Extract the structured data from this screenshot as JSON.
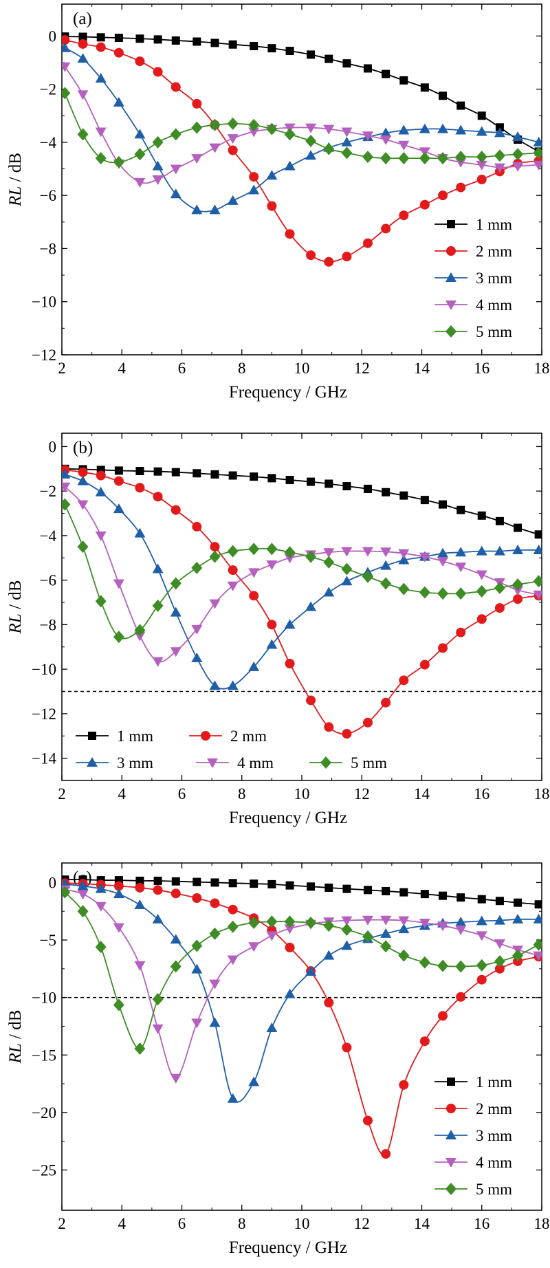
{
  "styles": {
    "colors": [
      "#000000",
      "#e31a1c",
      "#1f5fa8",
      "#b55fbf",
      "#3d8c24"
    ],
    "markers": [
      "square",
      "circle",
      "triangle-up",
      "triangle-down",
      "diamond"
    ]
  },
  "chart_data": [
    {
      "type": "line",
      "panel_label": "(a)",
      "xlabel": "Frequency / GHz",
      "ylabel_italic": "RL",
      "ylabel_unit": " / dB",
      "xlim": [
        2,
        18
      ],
      "ylim": [
        -12,
        1.2
      ],
      "xticks": [
        "2",
        "4",
        "6",
        "8",
        "10",
        "12",
        "14",
        "16",
        "18"
      ],
      "yticks": [
        "0",
        "−2",
        "−4",
        "−6",
        "−8",
        "−10",
        "−12"
      ],
      "ytick_values": [
        0,
        -2,
        -4,
        -6,
        -8,
        -10,
        -12
      ],
      "ref_line": null,
      "legend": {
        "placement": "right-lower",
        "layout": "column"
      },
      "x": [
        2.1,
        2.7,
        3.3,
        3.9,
        4.6,
        5.2,
        5.8,
        6.5,
        7.1,
        7.7,
        8.4,
        9.0,
        9.6,
        10.3,
        10.9,
        11.5,
        12.2,
        12.8,
        13.4,
        14.1,
        14.7,
        15.3,
        16.0,
        16.6,
        17.2,
        17.9
      ],
      "series": [
        {
          "name": "1 mm",
          "values": [
            -0.02,
            -0.03,
            -0.05,
            -0.07,
            -0.1,
            -0.13,
            -0.17,
            -0.21,
            -0.26,
            -0.32,
            -0.38,
            -0.46,
            -0.56,
            -0.7,
            -0.86,
            -1.03,
            -1.22,
            -1.43,
            -1.67,
            -1.94,
            -2.25,
            -2.62,
            -3.0,
            -3.44,
            -3.9,
            -4.35
          ]
        },
        {
          "name": "2 mm",
          "values": [
            -0.15,
            -0.3,
            -0.42,
            -0.63,
            -0.95,
            -1.35,
            -1.92,
            -2.55,
            -3.35,
            -4.3,
            -5.3,
            -6.4,
            -7.45,
            -8.25,
            -8.5,
            -8.3,
            -7.8,
            -7.25,
            -6.75,
            -6.35,
            -6.0,
            -5.7,
            -5.4,
            -5.1,
            -4.8,
            -4.7
          ]
        },
        {
          "name": "3 mm",
          "values": [
            -0.45,
            -0.85,
            -1.6,
            -2.5,
            -3.7,
            -4.9,
            -5.95,
            -6.55,
            -6.55,
            -6.2,
            -5.8,
            -5.25,
            -4.9,
            -4.5,
            -4.2,
            -4.0,
            -3.8,
            -3.65,
            -3.55,
            -3.5,
            -3.5,
            -3.55,
            -3.6,
            -3.65,
            -3.8,
            -4.0
          ]
        },
        {
          "name": "4 mm",
          "values": [
            -1.15,
            -2.2,
            -3.6,
            -4.8,
            -5.5,
            -5.4,
            -5.0,
            -4.6,
            -4.2,
            -3.85,
            -3.6,
            -3.5,
            -3.45,
            -3.45,
            -3.5,
            -3.6,
            -3.75,
            -3.9,
            -4.1,
            -4.35,
            -4.6,
            -4.75,
            -4.85,
            -4.95,
            -4.9,
            -4.85
          ]
        },
        {
          "name": "5 mm",
          "values": [
            -2.15,
            -3.7,
            -4.6,
            -4.75,
            -4.45,
            -4.0,
            -3.7,
            -3.45,
            -3.35,
            -3.3,
            -3.35,
            -3.5,
            -3.7,
            -3.95,
            -4.25,
            -4.4,
            -4.55,
            -4.6,
            -4.6,
            -4.6,
            -4.6,
            -4.55,
            -4.55,
            -4.5,
            -4.45,
            -4.4
          ]
        }
      ]
    },
    {
      "type": "line",
      "panel_label": "(b)",
      "xlabel": "Frequency / GHz",
      "ylabel_italic": "RL",
      "ylabel_unit": " / dB",
      "xlim": [
        2,
        18
      ],
      "ylim": [
        -15,
        0.6
      ],
      "xticks": [
        "2",
        "4",
        "6",
        "8",
        "10",
        "12",
        "14",
        "16",
        "18"
      ],
      "yticks": [
        "0",
        "−2",
        "−4",
        "−6",
        "−8",
        "−10",
        "−12",
        "−14"
      ],
      "ytick_values": [
        0,
        -2,
        -4,
        -6,
        -8,
        -10,
        -12,
        -14
      ],
      "ref_line": -11,
      "legend": {
        "placement": "bottom-left",
        "layout": "grid"
      },
      "x": [
        2.1,
        2.7,
        3.3,
        3.9,
        4.6,
        5.2,
        5.8,
        6.5,
        7.1,
        7.7,
        8.4,
        9.0,
        9.6,
        10.3,
        10.9,
        11.5,
        12.2,
        12.8,
        13.4,
        14.1,
        14.7,
        15.3,
        16.0,
        16.6,
        17.2,
        17.9
      ],
      "series": [
        {
          "name": "1 mm",
          "values": [
            -1.0,
            -1.02,
            -1.05,
            -1.08,
            -1.1,
            -1.12,
            -1.15,
            -1.2,
            -1.25,
            -1.3,
            -1.35,
            -1.42,
            -1.5,
            -1.58,
            -1.67,
            -1.78,
            -1.9,
            -2.05,
            -2.2,
            -2.4,
            -2.6,
            -2.85,
            -3.1,
            -3.35,
            -3.65,
            -3.95
          ]
        },
        {
          "name": "2 mm",
          "values": [
            -1.05,
            -1.15,
            -1.3,
            -1.55,
            -1.85,
            -2.25,
            -2.85,
            -3.6,
            -4.5,
            -5.55,
            -6.7,
            -8.0,
            -9.75,
            -11.4,
            -12.6,
            -12.9,
            -12.4,
            -11.5,
            -10.5,
            -9.8,
            -9.05,
            -8.35,
            -7.75,
            -7.25,
            -6.85,
            -6.7
          ]
        },
        {
          "name": "3 mm",
          "values": [
            -1.25,
            -1.55,
            -2.05,
            -2.8,
            -3.9,
            -5.5,
            -7.45,
            -9.5,
            -10.75,
            -10.75,
            -9.9,
            -8.9,
            -8.0,
            -7.2,
            -6.55,
            -6.05,
            -5.65,
            -5.35,
            -5.1,
            -4.95,
            -4.8,
            -4.75,
            -4.7,
            -4.7,
            -4.65,
            -4.65
          ]
        },
        {
          "name": "4 mm",
          "values": [
            -1.8,
            -2.6,
            -4.0,
            -6.15,
            -8.5,
            -9.65,
            -9.2,
            -8.2,
            -7.05,
            -6.25,
            -5.65,
            -5.3,
            -5.0,
            -4.85,
            -4.75,
            -4.7,
            -4.7,
            -4.72,
            -4.8,
            -4.95,
            -5.15,
            -5.4,
            -5.75,
            -6.1,
            -6.45,
            -6.65
          ]
        },
        {
          "name": "5 mm",
          "values": [
            -2.6,
            -4.5,
            -6.95,
            -8.55,
            -8.25,
            -7.15,
            -6.15,
            -5.45,
            -4.95,
            -4.7,
            -4.6,
            -4.6,
            -4.75,
            -4.95,
            -5.2,
            -5.5,
            -5.85,
            -6.15,
            -6.4,
            -6.55,
            -6.6,
            -6.6,
            -6.5,
            -6.35,
            -6.2,
            -6.05
          ]
        }
      ]
    },
    {
      "type": "line",
      "panel_label": "(c)",
      "xlabel": "Frequency / GHz",
      "ylabel_italic": "RL",
      "ylabel_unit": " / dB",
      "xlim": [
        2,
        18
      ],
      "ylim": [
        -28.5,
        1.7
      ],
      "xticks": [
        "2",
        "4",
        "6",
        "8",
        "10",
        "12",
        "14",
        "16",
        "18"
      ],
      "yticks": [
        "0",
        "−5",
        "−10",
        "−15",
        "−20",
        "−25"
      ],
      "ytick_values": [
        0,
        -5,
        -10,
        -15,
        -20,
        -25
      ],
      "ref_line": -10,
      "legend": {
        "placement": "right-lower",
        "layout": "column"
      },
      "x": [
        2.1,
        2.7,
        3.3,
        3.9,
        4.6,
        5.2,
        5.8,
        6.5,
        7.1,
        7.7,
        8.4,
        9.0,
        9.6,
        10.3,
        10.9,
        11.5,
        12.2,
        12.8,
        13.4,
        14.1,
        14.7,
        15.3,
        16.0,
        16.6,
        17.2,
        17.9
      ],
      "series": [
        {
          "name": "1 mm",
          "values": [
            0.25,
            0.25,
            0.2,
            0.2,
            0.15,
            0.15,
            0.1,
            0.05,
            0.0,
            -0.05,
            -0.1,
            -0.15,
            -0.25,
            -0.35,
            -0.45,
            -0.55,
            -0.65,
            -0.75,
            -0.85,
            -1.0,
            -1.15,
            -1.3,
            -1.45,
            -1.6,
            -1.75,
            -1.9
          ]
        },
        {
          "name": "2 mm",
          "values": [
            -0.05,
            -0.1,
            -0.2,
            -0.3,
            -0.45,
            -0.65,
            -0.95,
            -1.35,
            -1.8,
            -2.35,
            -3.1,
            -4.15,
            -5.65,
            -7.7,
            -10.45,
            -14.35,
            -20.7,
            -23.6,
            -17.6,
            -13.8,
            -11.6,
            -9.95,
            -8.45,
            -7.5,
            -6.85,
            -6.45
          ]
        },
        {
          "name": "3 mm",
          "values": [
            -0.15,
            -0.3,
            -0.55,
            -1.0,
            -1.95,
            -3.2,
            -4.95,
            -7.55,
            -12.2,
            -18.8,
            -17.35,
            -12.65,
            -9.7,
            -7.75,
            -6.35,
            -5.5,
            -4.9,
            -4.45,
            -4.05,
            -3.75,
            -3.55,
            -3.45,
            -3.35,
            -3.3,
            -3.2,
            -3.2
          ]
        },
        {
          "name": "4 mm",
          "values": [
            -0.6,
            -1.0,
            -2.05,
            -3.9,
            -7.2,
            -12.7,
            -17.0,
            -12.2,
            -8.8,
            -6.7,
            -5.55,
            -4.6,
            -4.0,
            -3.6,
            -3.4,
            -3.3,
            -3.25,
            -3.25,
            -3.3,
            -3.5,
            -3.75,
            -4.1,
            -4.6,
            -5.3,
            -5.85,
            -6.35
          ]
        },
        {
          "name": "5 mm",
          "values": [
            -0.85,
            -2.5,
            -5.6,
            -10.65,
            -14.45,
            -10.15,
            -7.3,
            -5.5,
            -4.45,
            -3.85,
            -3.5,
            -3.4,
            -3.4,
            -3.5,
            -3.75,
            -4.1,
            -4.7,
            -5.55,
            -6.35,
            -6.95,
            -7.25,
            -7.3,
            -7.2,
            -6.85,
            -6.35,
            -5.4
          ]
        }
      ]
    }
  ]
}
